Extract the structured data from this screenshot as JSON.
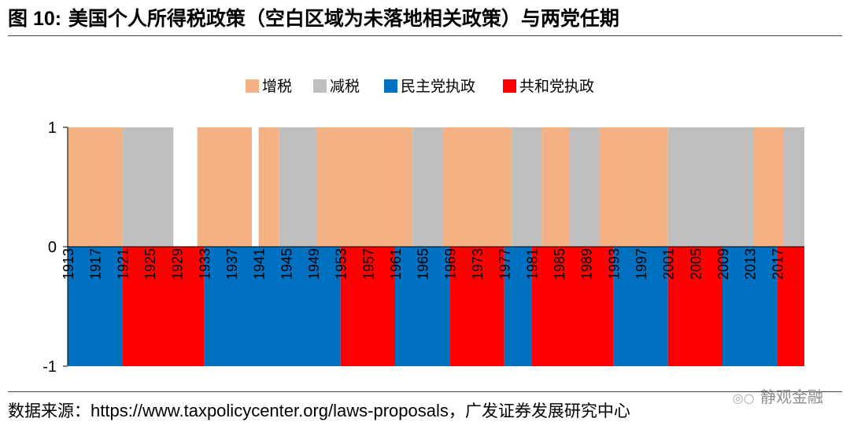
{
  "figure": {
    "label": "图 10:",
    "title": "美国个人所得税政策（空白区域为未落地相关政策）与两党任期"
  },
  "source": {
    "label": "数据来源：",
    "url": "https://www.taxpolicycenter.org/laws-proposals",
    "suffix": "，广发证券发展研究中心"
  },
  "watermark": {
    "text": "静观金融",
    "icon": "wechat-icon"
  },
  "colors": {
    "increase": "#F4B183",
    "decrease": "#BFBFBF",
    "democrat": "#0070C0",
    "republican": "#FF0000"
  },
  "chart_data": {
    "type": "bar",
    "x_min": 1913,
    "x_max": 2021,
    "ylim": [
      -1,
      1
    ],
    "yticks": [
      1,
      0,
      -1
    ],
    "xticks": [
      1913,
      1917,
      1921,
      1925,
      1929,
      1933,
      1937,
      1941,
      1945,
      1949,
      1953,
      1957,
      1961,
      1965,
      1969,
      1973,
      1977,
      1981,
      1985,
      1989,
      1993,
      1997,
      2001,
      2005,
      2009,
      2013,
      2017
    ],
    "legend": [
      "增税",
      "减税",
      "民主党执政",
      "共和党执政"
    ],
    "legend_position": "top-center",
    "tax_policy": [
      {
        "start": 1913,
        "end": 1921,
        "value": 1,
        "series": "增税"
      },
      {
        "start": 1921,
        "end": 1928.5,
        "value": 1,
        "series": "减税"
      },
      {
        "start": 1932,
        "end": 1940,
        "value": 1,
        "series": "增税"
      },
      {
        "start": 1941,
        "end": 1944,
        "value": 1,
        "series": "增税"
      },
      {
        "start": 1944,
        "end": 1949.5,
        "value": 1,
        "series": "减税"
      },
      {
        "start": 1949.5,
        "end": 1963.5,
        "value": 1,
        "series": "增税"
      },
      {
        "start": 1963.5,
        "end": 1968,
        "value": 1,
        "series": "减税"
      },
      {
        "start": 1968,
        "end": 1978,
        "value": 1,
        "series": "增税"
      },
      {
        "start": 1978,
        "end": 1982.5,
        "value": 1,
        "series": "减税"
      },
      {
        "start": 1982.5,
        "end": 1986.5,
        "value": 1,
        "series": "增税"
      },
      {
        "start": 1986.5,
        "end": 1991,
        "value": 1,
        "series": "减税"
      },
      {
        "start": 1991,
        "end": 2001,
        "value": 1,
        "series": "增税"
      },
      {
        "start": 2001,
        "end": 2013.5,
        "value": 1,
        "series": "减税"
      },
      {
        "start": 2013.5,
        "end": 2018,
        "value": 1,
        "series": "增税"
      },
      {
        "start": 2018,
        "end": 2021,
        "value": 1,
        "series": "减税"
      }
    ],
    "party_in_power": [
      {
        "start": 1913,
        "end": 1921,
        "value": -1,
        "series": "民主党执政"
      },
      {
        "start": 1921,
        "end": 1933,
        "value": -1,
        "series": "共和党执政"
      },
      {
        "start": 1933,
        "end": 1953,
        "value": -1,
        "series": "民主党执政"
      },
      {
        "start": 1953,
        "end": 1961,
        "value": -1,
        "series": "共和党执政"
      },
      {
        "start": 1961,
        "end": 1969,
        "value": -1,
        "series": "民主党执政"
      },
      {
        "start": 1969,
        "end": 1977,
        "value": -1,
        "series": "共和党执政"
      },
      {
        "start": 1977,
        "end": 1981,
        "value": -1,
        "series": "民主党执政"
      },
      {
        "start": 1981,
        "end": 1993,
        "value": -1,
        "series": "共和党执政"
      },
      {
        "start": 1993,
        "end": 2001,
        "value": -1,
        "series": "民主党执政"
      },
      {
        "start": 2001,
        "end": 2009,
        "value": -1,
        "series": "共和党执政"
      },
      {
        "start": 2009,
        "end": 2017,
        "value": -1,
        "series": "民主党执政"
      },
      {
        "start": 2017,
        "end": 2021,
        "value": -1,
        "series": "共和党执政"
      }
    ]
  }
}
